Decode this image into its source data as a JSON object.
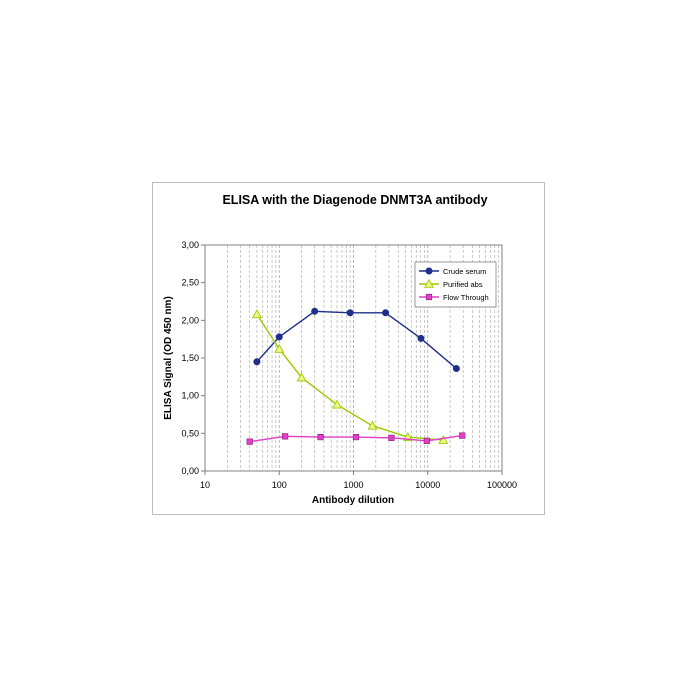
{
  "chart_data": {
    "type": "line",
    "title": "ELISA  with the Diagenode DNMT3A antibody",
    "xlabel": "Antibody dilution",
    "ylabel": "ELISA Signal (OD 450 nm)",
    "xscale": "log",
    "xlim": [
      10,
      100000
    ],
    "ylim": [
      0,
      3
    ],
    "x_ticks": [
      "10",
      "100",
      "1000",
      "10000",
      "100000"
    ],
    "y_ticks": [
      "0,00",
      "0,50",
      "1,00",
      "1,50",
      "2,00",
      "2,50",
      "3,00"
    ],
    "grid": "vertical-dashed",
    "legend_position": "top-right",
    "series": [
      {
        "name": "Crude serum",
        "color": "#1f2f8a",
        "marker": "circle",
        "x": [
          50,
          100,
          300,
          900,
          2700,
          8100,
          24300
        ],
        "y": [
          1.45,
          1.78,
          2.12,
          2.1,
          2.1,
          1.76,
          1.36
        ]
      },
      {
        "name": "Purified abs",
        "color": "#99cc00",
        "marker": "triangle",
        "x": [
          50,
          100,
          200,
          600,
          1800,
          5400,
          16200
        ],
        "y": [
          2.08,
          1.62,
          1.24,
          0.88,
          0.6,
          0.45,
          0.41
        ]
      },
      {
        "name": "Flow Through",
        "color": "#e040c8",
        "marker": "square",
        "x": [
          40,
          120,
          360,
          1080,
          3240,
          9720,
          29160
        ],
        "y": [
          0.39,
          0.46,
          0.45,
          0.45,
          0.44,
          0.4,
          0.47
        ]
      }
    ]
  }
}
